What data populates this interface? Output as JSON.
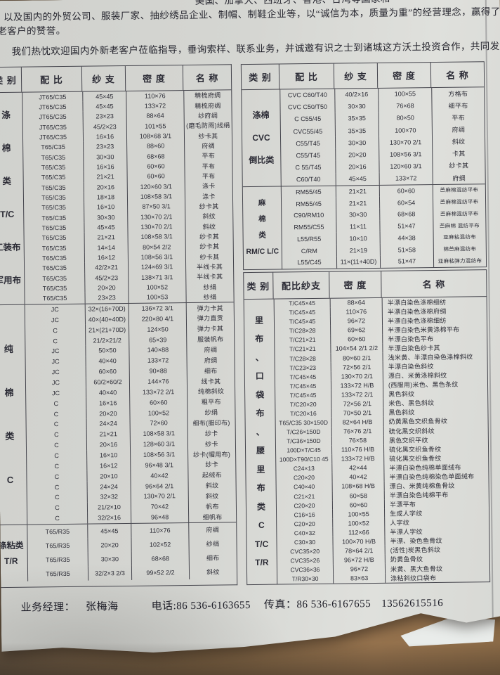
{
  "intro": {
    "line1": "美国、加拿大、西班牙、香港、台湾等国家和",
    "line2": "、以及国内的外贸公司、服装厂家、抽纱绣品企业、制帽、制鞋企业等，以“诚信为本，质量为重”的经营理念，赢得了国内",
    "line3": "老客户的赞誉。",
    "line4": "我们热忱欢迎国内外新老客户莅临指导，垂询索样、联系业务，并诚邀有识之士到诸城这方沃土投资合作，共同发展大业。"
  },
  "left_table": {
    "headers": [
      "类 别",
      "配 比",
      "纱 支",
      "密 度",
      "名 称"
    ],
    "groups": [
      {
        "category": [
          "涤",
          "棉",
          "类",
          "T/C",
          "工装布",
          "军用布"
        ],
        "rows": [
          {
            "r": "JT65/C35",
            "y": "45×45",
            "d": "110×76",
            "n": "精梳府绸"
          },
          {
            "r": "JT65/C35",
            "y": "45×45",
            "d": "133×72",
            "n": "精梳府绸"
          },
          {
            "r": "JT65/C35",
            "y": "23×23",
            "d": "88×64",
            "n": "纱府绸"
          },
          {
            "r": "JT65/C35",
            "y": "45/2×23",
            "d": "101×55",
            "n": "(磨毛防雨)线绢"
          },
          {
            "r": "JT65/C35",
            "y": "16×16",
            "d": "108×68 3/1",
            "n": "纱卡其"
          },
          {
            "r": "T65/C35",
            "y": "23×23",
            "d": "88×60",
            "n": "府绸"
          },
          {
            "r": "T65/C35",
            "y": "30×30",
            "d": "68×68",
            "n": "平布"
          },
          {
            "r": "T65/C35",
            "y": "16×16",
            "d": "60×60",
            "n": "平布"
          },
          {
            "r": "T65/C35",
            "y": "21×21",
            "d": "60×60",
            "n": "平布"
          },
          {
            "r": "T65/C35",
            "y": "20×16",
            "d": "120×60 3/1",
            "n": "涤卡"
          },
          {
            "r": "T65/C35",
            "y": "18×18",
            "d": "108×58 3/1",
            "n": "涤卡"
          },
          {
            "r": "T65/C35",
            "y": "16×10",
            "d": "87×50 3/1",
            "n": "纱卡其"
          },
          {
            "r": "T65/C35",
            "y": "30×30",
            "d": "130×70 2/1",
            "n": "斜纹"
          },
          {
            "r": "T65/C35",
            "y": "45×45",
            "d": "130×70 2/1",
            "n": "斜纹"
          },
          {
            "r": "T65/C35",
            "y": "21×21",
            "d": "108×58 3/1",
            "n": "纱卡其"
          },
          {
            "r": "T65/C35",
            "y": "14×14",
            "d": "80×54 2/2",
            "n": "纱卡其"
          },
          {
            "r": "T65/C35",
            "y": "16×12",
            "d": "108×56 3/1",
            "n": "纱卡其"
          },
          {
            "r": "T65/C35",
            "y": "42/2×21",
            "d": "124×69 3/1",
            "n": "半线卡其"
          },
          {
            "r": "T65/C35",
            "y": "45/2×23",
            "d": "138×71 3/1",
            "n": "半线卡其"
          },
          {
            "r": "T65/C35",
            "y": "20×20",
            "d": "100×52",
            "n": "纱绢"
          },
          {
            "r": "T65/C35",
            "y": "23×23",
            "d": "100×53",
            "n": "纱绢"
          }
        ]
      },
      {
        "category": [
          "纯",
          "棉",
          "类",
          "C"
        ],
        "rows": [
          {
            "r": "JC",
            "y": "32×(16+70D)",
            "d": "136×72 3/1",
            "n": "弹力卡其"
          },
          {
            "r": "JC",
            "y": "40×(40+40D)",
            "d": "220×80 4/1",
            "n": "弹力直贡"
          },
          {
            "r": "C",
            "y": "21×(21+70D)",
            "d": "124×50",
            "n": "弹力卡其"
          },
          {
            "r": "C",
            "y": "21/2×21/2",
            "d": "65×39",
            "n": "服装帆布"
          },
          {
            "r": "JC",
            "y": "50×50",
            "d": "140×88",
            "n": "府绸"
          },
          {
            "r": "JC",
            "y": "40×40",
            "d": "133×72",
            "n": "府绸"
          },
          {
            "r": "JC",
            "y": "60×60",
            "d": "90×88",
            "n": "细布"
          },
          {
            "r": "JC",
            "y": "60/2×60/2",
            "d": "144×76",
            "n": "线卡其"
          },
          {
            "r": "JC",
            "y": "40×40",
            "d": "133×72 2/1",
            "n": "纯棉斜纹"
          },
          {
            "r": "C",
            "y": "16×16",
            "d": "60×60",
            "n": "粗平布"
          },
          {
            "r": "C",
            "y": "20×20",
            "d": "100×52",
            "n": "纱绢"
          },
          {
            "r": "C",
            "y": "24×24",
            "d": "72×60",
            "n": "细布(腊印布)"
          },
          {
            "r": "C",
            "y": "21×21",
            "d": "108×58 3/1",
            "n": "纱卡"
          },
          {
            "r": "C",
            "y": "20×16",
            "d": "128×60 3/1",
            "n": "纱卡"
          },
          {
            "r": "C",
            "y": "16×10",
            "d": "108×56 3/1",
            "n": "纱卡(帽用布)"
          },
          {
            "r": "C",
            "y": "16×12",
            "d": "96×48 3/1",
            "n": "纱卡"
          },
          {
            "r": "C",
            "y": "20×10",
            "d": "40×42",
            "n": "起绒布"
          },
          {
            "r": "C",
            "y": "24×24",
            "d": "96×64 2/1",
            "n": "斜纹"
          },
          {
            "r": "C",
            "y": "32×32",
            "d": "130×70 2/1",
            "n": "斜纹"
          },
          {
            "r": "C",
            "y": "21/2×10",
            "d": "70×42",
            "n": "帆布"
          },
          {
            "r": "C",
            "y": "32/2×16",
            "d": "96×48",
            "n": "细帆布"
          }
        ]
      },
      {
        "category": [
          "涤粘类",
          "T/R"
        ],
        "rows": [
          {
            "r": "T65/R35",
            "y": "45×45",
            "d": "110×76",
            "n": "府绸"
          },
          {
            "r": "T65/R35",
            "y": "20×20",
            "d": "102×52",
            "n": "纱绢"
          },
          {
            "r": "T65/R35",
            "y": "30×30",
            "d": "68×68",
            "n": "细布"
          },
          {
            "r": "T65/R35",
            "y": "32/2×3 2/3",
            "d": "99×52 2/2",
            "n": "斜纹"
          }
        ]
      }
    ]
  },
  "right_table_top": {
    "headers": [
      "类 别",
      "配 比",
      "纱 支",
      "密 度",
      "名 称"
    ],
    "groups": [
      {
        "category": [
          "涤棉",
          "CVC",
          "倒比类"
        ],
        "rows": [
          {
            "r": "CVC C60/T40",
            "y": "40/2×16",
            "d": "100×55",
            "n": "方格布"
          },
          {
            "r": "CVC C50/T50",
            "y": "30×30",
            "d": "76×68",
            "n": "细平布"
          },
          {
            "r": "C C55/45",
            "y": "35×35",
            "d": "80×50",
            "n": "平布"
          },
          {
            "r": "CVC55/45",
            "y": "35×35",
            "d": "100×70",
            "n": "府绸"
          },
          {
            "r": "C55/T45",
            "y": "30×30",
            "d": "130×70 2/1",
            "n": "斜纹"
          },
          {
            "r": "C55/T45",
            "y": "20×20",
            "d": "108×56 3/1",
            "n": "卡其"
          },
          {
            "r": "C 55/T45",
            "y": "20×16",
            "d": "120×60 3/1",
            "n": "纱卡其"
          },
          {
            "r": "C60/T40",
            "y": "45×45",
            "d": "133×72",
            "n": "府绸"
          }
        ]
      },
      {
        "category": [
          "麻",
          "棉",
          "类",
          "RM/C L/C"
        ],
        "rows": [
          {
            "r": "RM55/45",
            "y": "21×21",
            "d": "60×60",
            "n": "苎麻棉混纺平布"
          },
          {
            "r": "RM55/45",
            "y": "21×21",
            "d": "60×54",
            "n": "苎麻棉混纺平布"
          },
          {
            "r": "C90/RM10",
            "y": "30×30",
            "d": "68×68",
            "n": "苎麻棉混纺平布"
          },
          {
            "r": "RM55/C55",
            "y": "11×11",
            "d": "51×47",
            "n": "苎麻棉 混纺平布"
          },
          {
            "r": "L55/R55",
            "y": "10×10",
            "d": "44×38",
            "n": "亚麻粘混纺布"
          },
          {
            "r": "C/RM",
            "y": "21×19",
            "d": "51×58",
            "n": "棉苎麻混纺布"
          },
          {
            "r": "L55/C45",
            "y": "11×(11+40D)",
            "d": "51×47",
            "n": "亚麻粘弹力混纺布"
          }
        ]
      }
    ]
  },
  "right_table_bottom": {
    "headers": [
      "类 别",
      "配比纱支",
      "密 度",
      "名 称"
    ],
    "groups": [
      {
        "category": [
          "里",
          "布",
          "、",
          "口",
          "袋",
          "布",
          "、",
          "腰",
          "里",
          "布",
          "类",
          "C",
          "T/C",
          "T/R"
        ],
        "rows": [
          {
            "r": "T/C45×45",
            "d": "88×64",
            "n": "半漂白染色涤棉细纺"
          },
          {
            "r": "T/C45×45",
            "d": "110×76",
            "n": "半漂白染色涤棉府绸"
          },
          {
            "r": "T/C45×45",
            "d": "96×72",
            "n": "半漂白染色涤棉细纺"
          },
          {
            "r": "T/C28×28",
            "d": "69×62",
            "n": "半漂白染色米黄涤棉平布"
          },
          {
            "r": "T/C21×21",
            "d": "60×60",
            "n": "半漂白染色平布"
          },
          {
            "r": "T/C21×21",
            "d": "104×54 2/1 2/2",
            "n": "半漂白染色纱卡其"
          },
          {
            "r": "T/C28×28",
            "d": "80×60 2/1",
            "n": "浅米黄、半漂白染色涤棉斜纹"
          },
          {
            "r": "T/C23×23",
            "d": "72×56 2/1",
            "n": "半漂白染色斜纹"
          },
          {
            "r": "T/C45×45",
            "d": "130×70 2/1",
            "n": "漂白、米黄涤棉斜纹"
          },
          {
            "r": "T/C45×45",
            "d": "133×72 H/B",
            "n": "(西服用)米色、黑色条纹"
          },
          {
            "r": "T/C45×45",
            "d": "133×72 2/1",
            "n": "黑色斜纹"
          },
          {
            "r": "T/C20×20",
            "d": "72×56 2/1",
            "n": "米色、黑色斜纹"
          },
          {
            "r": "T/C20×16",
            "d": "70×50 2/1",
            "n": "黑色斜纹"
          },
          {
            "r": "T65/C35 30×150D",
            "d": "82×64 H/B",
            "n": "奶黄黑色交织鱼骨纹"
          },
          {
            "r": "T/C26×150D",
            "d": "76×76 2/1",
            "n": "硫化黑交织斜纹"
          },
          {
            "r": "T/C36×150D",
            "d": "76×58",
            "n": "黑色交织平纹"
          },
          {
            "r": "100D×T/C45",
            "d": "110×76 H/B",
            "n": "硫化黑交织鱼骨纹"
          },
          {
            "r": "100D×T90/C10 45",
            "d": "133×72 H/B",
            "n": "硫化黑交织鱼骨纹"
          },
          {
            "r": "C24×13",
            "d": "42×44",
            "n": "半漂白染色纯棉单面绒布"
          },
          {
            "r": "C20×20",
            "d": "40×42",
            "n": "半漂白染色纯棉染色单面绒布"
          },
          {
            "r": "C40×40",
            "d": "108×68 H/B",
            "n": "漂白、米黄纯棉鱼骨纹"
          },
          {
            "r": "C21×21",
            "d": "60×58",
            "n": "半漂白染色纯棉平布"
          },
          {
            "r": "C20×20",
            "d": "60×60",
            "n": "半漂平布"
          },
          {
            "r": "C16×16",
            "d": "100×55",
            "n": "生成人字纹"
          },
          {
            "r": "C20×20",
            "d": "100×52",
            "n": "人字纹"
          },
          {
            "r": "C40×32",
            "d": "112×66",
            "n": "半漂人字纹"
          },
          {
            "r": "C30×30",
            "d": "100×70 H/B",
            "n": "半漂、染色鱼骨纹"
          },
          {
            "r": "CVC35×20",
            "d": "78×64 2/1",
            "n": "(活性)炭黑色斜纹"
          },
          {
            "r": "CVC35×26",
            "d": "96×72 H/B",
            "n": "奶黄鱼骨纹"
          },
          {
            "r": "CVC36×36",
            "d": "96×72",
            "n": "米黄、黑大鱼骨纹"
          },
          {
            "r": "T/R30×30",
            "d": "83×63",
            "n": "涤粘斜纹口袋布"
          }
        ]
      }
    ]
  },
  "footer": {
    "manager_label": "业务经理：",
    "manager_name": "张梅海",
    "phone": "电话:86 536-6163655",
    "fax": "传真：86 536-6167655",
    "mobile": "13562615516"
  }
}
